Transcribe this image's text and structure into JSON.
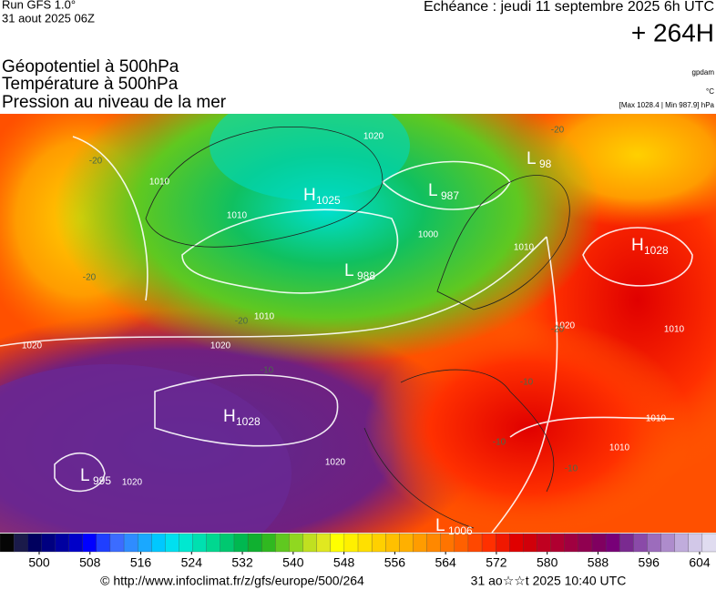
{
  "header": {
    "run": "Run GFS 1.0°",
    "run_date": "31 aout 2025 06Z",
    "valid": "Echéance : jeudi 11 septembre 2025 6h UTC",
    "lead": "+ 264H"
  },
  "titles": [
    "Géopotentiel à 500hPa",
    "Température à 500hPa",
    "Pression au niveau de la mer"
  ],
  "units": {
    "geopotential": "gpdam",
    "temperature": "°C",
    "pressure": "[Max 1028.4 | Min 987.9] hPa"
  },
  "centers": [
    {
      "letter": "H",
      "value": "1025"
    },
    {
      "letter": "L",
      "value": "987"
    },
    {
      "letter": "L",
      "value": "98"
    },
    {
      "letter": "L",
      "value": "988"
    },
    {
      "letter": "H",
      "value": "1028"
    },
    {
      "letter": "H",
      "value": "1028"
    },
    {
      "letter": "L",
      "value": "995"
    },
    {
      "letter": "L",
      "value": "1006"
    }
  ],
  "isobar_labels": [
    "1010",
    "1020",
    "1010",
    "1000",
    "1010",
    "1020",
    "1010",
    "1020",
    "1020",
    "1020",
    "1020",
    "1010",
    "1010",
    "1010"
  ],
  "temperature_labels": [
    "-20",
    "-20",
    "-20",
    "-20",
    "-20",
    "-10",
    "-10",
    "-10",
    "-10"
  ],
  "colorbar": {
    "ticks": [
      500,
      508,
      516,
      524,
      532,
      540,
      548,
      556,
      564,
      572,
      580,
      588,
      596,
      604
    ],
    "colors": [
      "#050505",
      "#1a1a4a",
      "#00005e",
      "#000080",
      "#0000a0",
      "#0000c8",
      "#0000ff",
      "#1f3fff",
      "#3c6cff",
      "#2f8cff",
      "#1aa8ff",
      "#00c8ff",
      "#00e0f0",
      "#00e8d0",
      "#00e0b0",
      "#00d890",
      "#00c870",
      "#00b850",
      "#10b030",
      "#30b820",
      "#60c820",
      "#90d820",
      "#c0e020",
      "#e0e820",
      "#ffff00",
      "#fff000",
      "#ffe000",
      "#ffd000",
      "#ffc000",
      "#ffb000",
      "#ff9c00",
      "#ff8800",
      "#ff7400",
      "#ff6000",
      "#ff4800",
      "#ff3000",
      "#f01800",
      "#e00000",
      "#d0000a",
      "#c00020",
      "#b00030",
      "#a00040",
      "#900050",
      "#800060",
      "#780078",
      "#7a2a90",
      "#8a4aa8",
      "#9c6cbc",
      "#ae8ccc",
      "#c0acdc",
      "#d2c8e8",
      "#e0dcf0"
    ]
  },
  "footer": {
    "source": "© http://www.infoclimat.fr/z/gfs/europe/500/264",
    "generated": "31 ao☆☆t 2025 10:40 UTC"
  }
}
